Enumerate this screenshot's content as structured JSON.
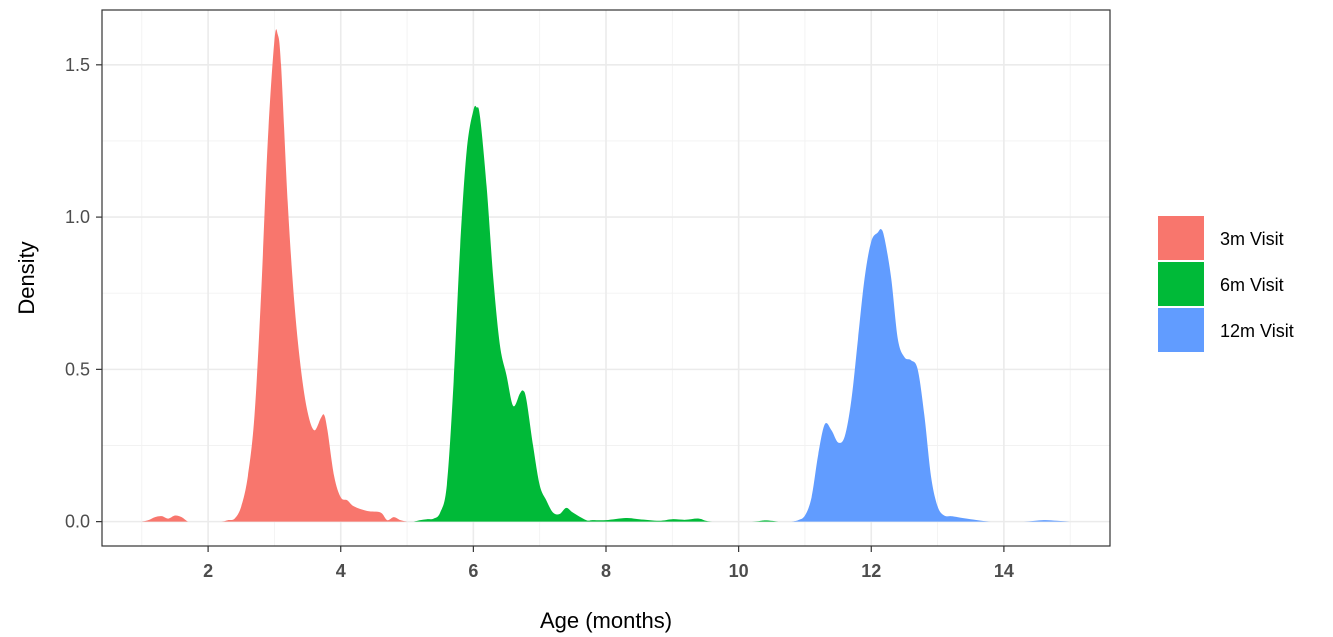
{
  "chart_data": {
    "type": "area",
    "xlabel": "Age (months)",
    "ylabel": "Density",
    "xlim": [
      0.4,
      15.6
    ],
    "ylim": [
      -0.08,
      1.68
    ],
    "x_ticks": [
      2,
      4,
      6,
      8,
      10,
      12,
      14
    ],
    "y_ticks": [
      0.0,
      0.5,
      1.0,
      1.5
    ],
    "x_tick_labels": [
      "2",
      "4",
      "6",
      "8",
      "10",
      "12",
      "14"
    ],
    "y_tick_labels": [
      "0.0",
      "0.5",
      "1.0",
      "1.5"
    ],
    "grid": true,
    "legend_position": "right",
    "series": [
      {
        "name": "3m Visit",
        "color": "#F8766D",
        "x": [
          1.0,
          1.1,
          1.2,
          1.3,
          1.4,
          1.5,
          1.6,
          1.7,
          1.8,
          2.0,
          2.2,
          2.3,
          2.4,
          2.5,
          2.6,
          2.7,
          2.8,
          2.9,
          3.0,
          3.05,
          3.1,
          3.2,
          3.3,
          3.4,
          3.5,
          3.6,
          3.7,
          3.75,
          3.8,
          3.9,
          4.0,
          4.1,
          4.2,
          4.4,
          4.6,
          4.7,
          4.8,
          4.9,
          5.0
        ],
        "y": [
          0.0,
          0.005,
          0.015,
          0.018,
          0.01,
          0.02,
          0.015,
          0.0,
          0.0,
          0.0,
          0.0,
          0.005,
          0.01,
          0.05,
          0.15,
          0.35,
          0.75,
          1.25,
          1.58,
          1.6,
          1.5,
          1.05,
          0.72,
          0.5,
          0.36,
          0.3,
          0.34,
          0.35,
          0.3,
          0.15,
          0.08,
          0.07,
          0.05,
          0.035,
          0.03,
          0.005,
          0.015,
          0.005,
          0.0
        ]
      },
      {
        "name": "6m Visit",
        "color": "#00BA38",
        "x": [
          5.1,
          5.2,
          5.3,
          5.4,
          5.5,
          5.6,
          5.7,
          5.8,
          5.9,
          6.0,
          6.05,
          6.1,
          6.2,
          6.3,
          6.4,
          6.5,
          6.6,
          6.7,
          6.75,
          6.8,
          6.9,
          7.0,
          7.1,
          7.2,
          7.3,
          7.4,
          7.5,
          7.7,
          7.8,
          8.0,
          8.3,
          8.5,
          8.8,
          9.0,
          9.2,
          9.4,
          9.6,
          10.2,
          10.4,
          10.6
        ],
        "y": [
          0.0,
          0.005,
          0.008,
          0.01,
          0.03,
          0.12,
          0.45,
          0.9,
          1.22,
          1.35,
          1.36,
          1.33,
          1.1,
          0.8,
          0.58,
          0.48,
          0.38,
          0.42,
          0.43,
          0.4,
          0.25,
          0.12,
          0.07,
          0.03,
          0.025,
          0.045,
          0.03,
          0.005,
          0.005,
          0.005,
          0.012,
          0.008,
          0.003,
          0.008,
          0.006,
          0.01,
          0.0,
          0.0,
          0.004,
          0.0
        ]
      },
      {
        "name": "12m Visit",
        "color": "#619CFF",
        "x": [
          10.8,
          10.9,
          11.0,
          11.1,
          11.2,
          11.3,
          11.4,
          11.5,
          11.6,
          11.7,
          11.8,
          11.9,
          12.0,
          12.1,
          12.15,
          12.2,
          12.3,
          12.4,
          12.5,
          12.6,
          12.7,
          12.8,
          12.9,
          13.0,
          13.1,
          13.2,
          13.3,
          13.5,
          13.8,
          14.0,
          14.3,
          14.6,
          14.8,
          15.0
        ],
        "y": [
          0.0,
          0.005,
          0.02,
          0.08,
          0.22,
          0.32,
          0.3,
          0.26,
          0.28,
          0.4,
          0.6,
          0.8,
          0.92,
          0.95,
          0.96,
          0.93,
          0.8,
          0.6,
          0.54,
          0.53,
          0.5,
          0.35,
          0.15,
          0.05,
          0.02,
          0.018,
          0.015,
          0.008,
          0.0,
          0.0,
          0.0,
          0.005,
          0.003,
          0.0
        ]
      }
    ]
  }
}
